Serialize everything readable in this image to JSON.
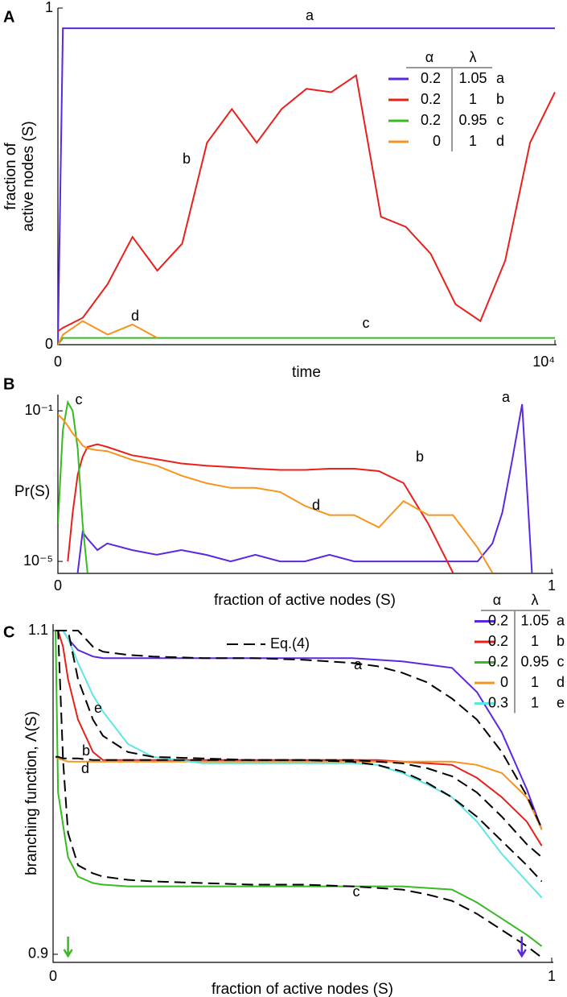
{
  "chart_data": [
    {
      "panel": "A",
      "type": "line",
      "xlabel": "time",
      "ylabel": [
        "fraction of",
        "active nodes (S)"
      ],
      "x": [
        0,
        100,
        500,
        1000,
        1500,
        2000,
        2500,
        3000,
        3500,
        4000,
        4500,
        5000,
        5500,
        6000,
        6500,
        7000,
        7500,
        8000,
        8500,
        9000,
        9500,
        10000
      ],
      "xlim": [
        0,
        10000
      ],
      "xticks": [
        0,
        {
          "value": 10000,
          "label": "10⁴"
        }
      ],
      "ylim": [
        0,
        1
      ],
      "yticks": [
        0,
        1
      ],
      "legend_header": [
        "α",
        "λ"
      ],
      "series": [
        {
          "name": "a",
          "color": "#5a28e0",
          "alpha": "0.2",
          "lambda": "1.05",
          "values": [
            0,
            0.94,
            0.94,
            0.94,
            0.94,
            0.94,
            0.94,
            0.94,
            0.94,
            0.94,
            0.94,
            0.94,
            0.94,
            0.94,
            0.94,
            0.94,
            0.94,
            0.94,
            0.94,
            0.94,
            0.94,
            0.94
          ]
        },
        {
          "name": "b",
          "color": "#e8201c",
          "alpha": "0.2",
          "lambda": "1",
          "values": [
            0.04,
            0.05,
            0.08,
            0.18,
            0.32,
            0.22,
            0.3,
            0.6,
            0.7,
            0.6,
            0.7,
            0.76,
            0.75,
            0.8,
            0.38,
            0.35,
            0.27,
            0.12,
            0.07,
            0.25,
            0.6,
            0.75
          ]
        },
        {
          "name": "c",
          "color": "#38bb22",
          "alpha": "0.2",
          "lambda": "0.95",
          "values": [
            0,
            0.02,
            0.02,
            0.02,
            0.02,
            0.02,
            0.02,
            0.02,
            0.02,
            0.02,
            0.02,
            0.02,
            0.02,
            0.02,
            0.02,
            0.02,
            0.02,
            0.02,
            0.02,
            0.02,
            0.02,
            0.02
          ]
        },
        {
          "name": "d",
          "color": "#f7941d",
          "alpha": "0",
          "lambda": "1",
          "values": [
            0,
            0.03,
            0.07,
            0.03,
            0.06,
            0.02,
            null,
            null,
            null,
            null,
            null,
            null,
            null,
            null,
            null,
            null,
            null,
            null,
            null,
            null,
            null,
            null
          ]
        }
      ]
    },
    {
      "panel": "B",
      "type": "line",
      "yscale": "log",
      "xlabel": "fraction of active nodes (S)",
      "ylabel": "Pr(S)",
      "x": [
        0,
        0.01,
        0.02,
        0.03,
        0.04,
        0.05,
        0.06,
        0.08,
        0.1,
        0.15,
        0.2,
        0.25,
        0.3,
        0.35,
        0.4,
        0.45,
        0.5,
        0.55,
        0.6,
        0.65,
        0.7,
        0.75,
        0.8,
        0.85,
        0.88,
        0.9,
        0.92,
        0.94,
        0.96
      ],
      "xlim": [
        0,
        1
      ],
      "xticks": [
        0,
        1
      ],
      "ylim": [
        4.8e-06,
        0.27
      ],
      "yticks": [
        {
          "value": 0.1,
          "label": "10⁻¹"
        },
        {
          "value": 1e-05,
          "label": "10⁻⁵"
        }
      ],
      "series": [
        {
          "name": "a",
          "color": "#5a28e0",
          "values": [
            null,
            null,
            null,
            null,
            5e-06,
            6e-05,
            4e-05,
            2e-05,
            3e-05,
            2e-05,
            1.5e-05,
            2e-05,
            1.5e-05,
            1e-05,
            1.5e-05,
            1e-05,
            1e-05,
            1.5e-05,
            1e-05,
            1e-05,
            1e-05,
            1e-05,
            1e-05,
            1e-05,
            3e-05,
            0.0002,
            0.005,
            0.15,
            5e-06
          ]
        },
        {
          "name": "b",
          "color": "#e8201c",
          "values": [
            null,
            null,
            1e-05,
            0.0002,
            0.002,
            0.006,
            0.011,
            0.013,
            0.011,
            0.0066,
            0.0052,
            0.004,
            0.0035,
            0.0032,
            0.0029,
            0.0027,
            0.0027,
            0.0029,
            0.0029,
            0.0025,
            0.0012,
            0.0001,
            5e-06,
            null,
            null,
            null,
            null,
            null,
            null
          ]
        },
        {
          "name": "c",
          "color": "#38bb22",
          "values": [
            0.0001,
            0.03,
            0.17,
            0.1,
            0.01,
            0.0001,
            5e-06,
            null,
            null,
            null,
            null,
            null,
            null,
            null,
            null,
            null,
            null,
            null,
            null,
            null,
            null,
            null,
            null,
            null,
            null,
            null,
            null,
            null,
            null
          ]
        },
        {
          "name": "d",
          "color": "#f7941d",
          "values": [
            0.08,
            0.06,
            0.04,
            0.025,
            0.018,
            0.012,
            0.01,
            0.009,
            0.0085,
            0.005,
            0.0035,
            0.0019,
            0.0012,
            0.0009,
            0.0009,
            0.0007,
            0.0003,
            0.00017,
            0.00017,
            8e-05,
            0.0004,
            0.00017,
            0.00017,
            2.3e-05,
            5e-06,
            null,
            null,
            null,
            null
          ]
        }
      ]
    },
    {
      "panel": "C",
      "type": "line",
      "xlabel": "fraction of active nodes (S)",
      "ylabel": "branching function, Λ(S)",
      "x": [
        0.005,
        0.01,
        0.02,
        0.03,
        0.05,
        0.08,
        0.1,
        0.15,
        0.2,
        0.3,
        0.4,
        0.5,
        0.6,
        0.65,
        0.7,
        0.75,
        0.8,
        0.85,
        0.9,
        0.95,
        0.98
      ],
      "xlim": [
        0,
        1
      ],
      "xticks": [
        0,
        1
      ],
      "ylim": [
        0.895,
        1.104
      ],
      "yticks": [
        0.9,
        1.1
      ],
      "legend_header": [
        "α",
        "λ"
      ],
      "series": [
        {
          "name": "a",
          "color": "#5a28e0",
          "alpha": "0.2",
          "lambda": "1.05",
          "values": [
            1.1,
            1.1,
            1.1,
            1.095,
            1.088,
            1.084,
            1.083,
            1.083,
            1.083,
            1.083,
            1.083,
            1.083,
            1.083,
            1.082,
            1.081,
            1.079,
            1.077,
            1.062,
            1.037,
            1.002,
            0.977
          ]
        },
        {
          "name": "b",
          "color": "#e8201c",
          "alpha": "0.2",
          "lambda": "1",
          "values": [
            1.1,
            1.1,
            1.09,
            1.07,
            1.045,
            1.025,
            1.02,
            1.02,
            1.02,
            1.02,
            1.02,
            1.02,
            1.02,
            1.02,
            1.019,
            1.018,
            1.017,
            1.009,
            0.997,
            0.982,
            0.967
          ]
        },
        {
          "name": "c",
          "color": "#38bb22",
          "alpha": "0.2",
          "lambda": "0.95",
          "values": [
            1.1,
            1.0,
            0.98,
            0.96,
            0.948,
            0.944,
            0.943,
            0.942,
            0.942,
            0.942,
            0.942,
            0.942,
            0.942,
            0.942,
            0.942,
            0.941,
            0.94,
            0.932,
            0.922,
            0.912,
            0.905
          ]
        },
        {
          "name": "d",
          "color": "#f7941d",
          "alpha": "0",
          "lambda": "1",
          "values": [
            1.022,
            1.021,
            1.02,
            1.019,
            1.019,
            1.019,
            1.019,
            1.019,
            1.019,
            1.019,
            1.019,
            1.019,
            1.019,
            1.019,
            1.019,
            1.019,
            1.019,
            1.017,
            1.012,
            0.997,
            0.977
          ]
        },
        {
          "name": "e",
          "color": "#5ce6e6",
          "alpha": "0.3",
          "lambda": "1",
          "values": [
            1.1,
            1.1,
            1.1,
            1.095,
            1.08,
            1.06,
            1.05,
            1.03,
            1.022,
            1.018,
            1.018,
            1.018,
            1.018,
            1.017,
            1.012,
            1.005,
            0.997,
            0.982,
            0.962,
            0.945,
            0.935
          ]
        }
      ],
      "dashed": {
        "name": "Eq.(4)",
        "color": "#000000",
        "curves": [
          [
            1.1,
            1.1,
            1.1,
            1.1,
            1.1,
            1.09,
            1.087,
            1.085,
            1.084,
            1.083,
            1.083,
            1.082,
            1.08,
            1.078,
            1.074,
            1.068,
            1.058,
            1.045,
            1.025,
            0.998,
            0.978
          ],
          [
            1.1,
            1.1,
            1.1,
            1.1,
            1.07,
            1.045,
            1.035,
            1.025,
            1.022,
            1.021,
            1.02,
            1.02,
            1.019,
            1.017,
            1.013,
            1.006,
            0.997,
            0.985,
            0.97,
            0.955,
            0.945
          ],
          [
            1.022,
            1.022,
            1.021,
            1.021,
            1.021,
            1.02,
            1.02,
            1.02,
            1.02,
            1.02,
            1.02,
            1.02,
            1.02,
            1.019,
            1.018,
            1.015,
            1.01,
            1.0,
            0.985,
            0.968,
            0.96
          ],
          [
            1.1,
            1.1,
            1.02,
            0.975,
            0.955,
            0.95,
            0.948,
            0.946,
            0.945,
            0.944,
            0.943,
            0.943,
            0.942,
            0.941,
            0.94,
            0.937,
            0.933,
            0.925,
            0.915,
            0.905,
            0.898
          ]
        ]
      },
      "markers": [
        {
          "x": 0.03,
          "color": "#38bb22"
        },
        {
          "x": 0.94,
          "color": "#5a28e0"
        }
      ]
    }
  ]
}
